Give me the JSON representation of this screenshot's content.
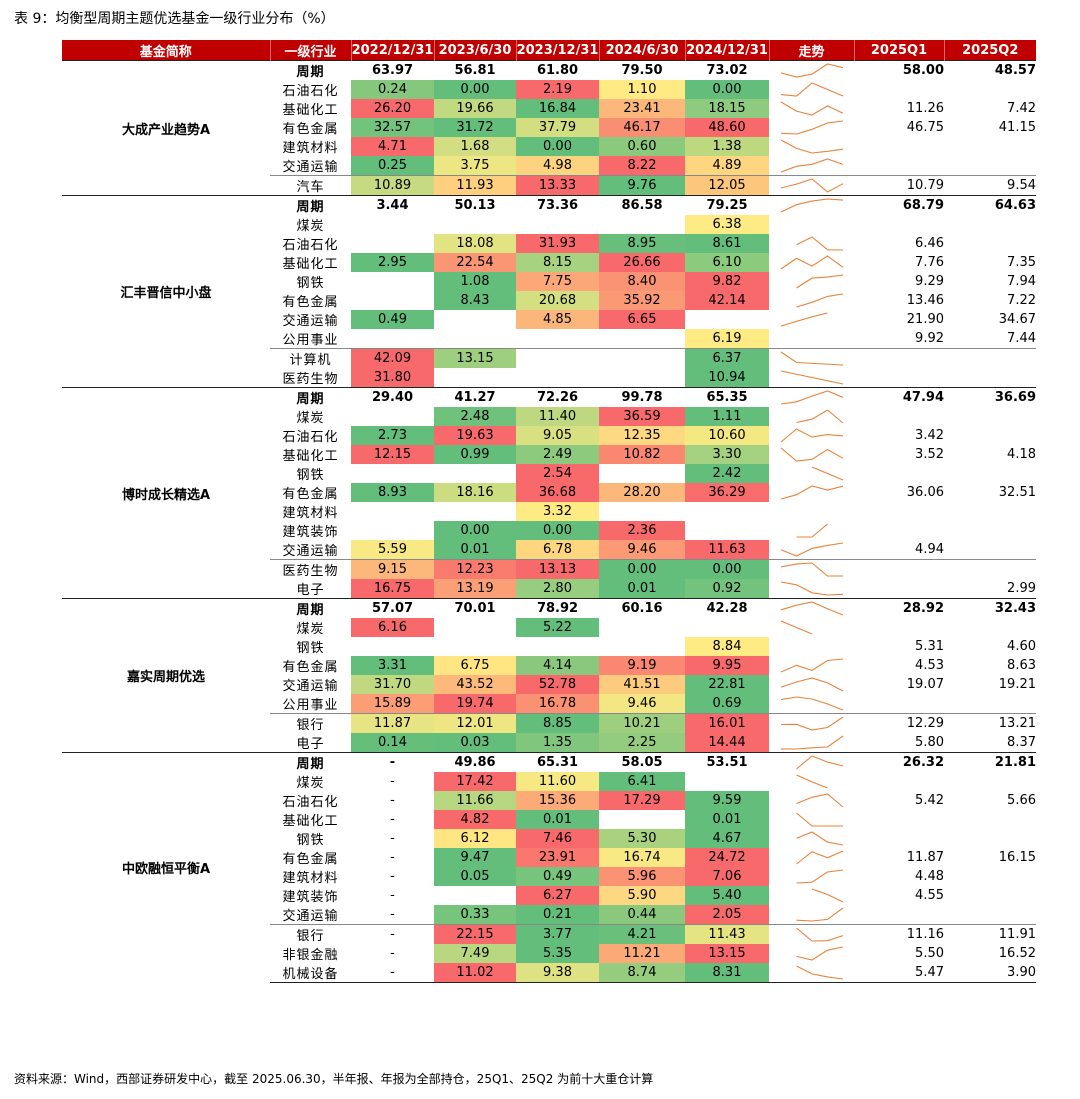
{
  "title": "表 9：均衡型周期主题优选基金一级行业分布（%）",
  "source_note": "资料来源：Wind，西部证券研发中心，截至 2025.06.30，半年报、年报为全部持仓，25Q1、25Q2 为前十大重仓计算",
  "headers": [
    "基金简称",
    "一级行业",
    "2022/12/31",
    "2023/6/30",
    "2023/12/31",
    "2024/6/30",
    "2024/12/31",
    "走势",
    "2025Q1",
    "2025Q2"
  ],
  "colors": {
    "header_bg": "#c00000",
    "heat_low": "#63be7b",
    "heat_mid": "#ffeb84",
    "heat_high": "#f8696b",
    "trend_line": "#e8833a"
  },
  "chart_data": {
    "type": "table",
    "funds": [
      {
        "name": "大成产业趋势A",
        "rows": [
          {
            "industry": "周期",
            "values": [
              "63.97",
              "56.81",
              "61.80",
              "79.50",
              "73.02"
            ],
            "q1": "58.00",
            "q2": "48.57"
          },
          {
            "industry": "石油石化",
            "values": [
              "0.24",
              "0.00",
              "2.19",
              "1.10",
              "0.00"
            ],
            "q1": "",
            "q2": ""
          },
          {
            "industry": "基础化工",
            "values": [
              "26.20",
              "19.66",
              "16.84",
              "23.41",
              "18.15"
            ],
            "q1": "11.26",
            "q2": "7.42"
          },
          {
            "industry": "有色金属",
            "values": [
              "32.57",
              "31.72",
              "37.79",
              "46.17",
              "48.60"
            ],
            "q1": "46.75",
            "q2": "41.15"
          },
          {
            "industry": "建筑材料",
            "values": [
              "4.71",
              "1.68",
              "0.00",
              "0.60",
              "1.38"
            ],
            "q1": "",
            "q2": ""
          },
          {
            "industry": "交通运输",
            "values": [
              "0.25",
              "3.75",
              "4.98",
              "8.22",
              "4.89"
            ],
            "q1": "",
            "q2": ""
          },
          {
            "industry": "汽车",
            "values": [
              "10.89",
              "11.93",
              "13.33",
              "9.76",
              "12.05"
            ],
            "q1": "10.79",
            "q2": "9.54"
          }
        ]
      },
      {
        "name": "汇丰晋信中小盘",
        "rows": [
          {
            "industry": "周期",
            "values": [
              "3.44",
              "50.13",
              "73.36",
              "86.58",
              "79.25"
            ],
            "q1": "68.79",
            "q2": "64.63"
          },
          {
            "industry": "煤炭",
            "values": [
              "",
              "",
              "",
              "",
              "6.38"
            ],
            "q1": "",
            "q2": ""
          },
          {
            "industry": "石油石化",
            "values": [
              "",
              "18.08",
              "31.93",
              "8.95",
              "8.61"
            ],
            "q1": "6.46",
            "q2": ""
          },
          {
            "industry": "基础化工",
            "values": [
              "2.95",
              "22.54",
              "8.15",
              "26.66",
              "6.10"
            ],
            "q1": "7.76",
            "q2": "7.35"
          },
          {
            "industry": "钢铁",
            "values": [
              "",
              "1.08",
              "7.75",
              "8.40",
              "9.82"
            ],
            "q1": "9.29",
            "q2": "7.94"
          },
          {
            "industry": "有色金属",
            "values": [
              "",
              "8.43",
              "20.68",
              "35.92",
              "42.14"
            ],
            "q1": "13.46",
            "q2": "7.22"
          },
          {
            "industry": "交通运输",
            "values": [
              "0.49",
              "",
              "4.85",
              "6.65",
              ""
            ],
            "q1": "21.90",
            "q2": "34.67"
          },
          {
            "industry": "公用事业",
            "values": [
              "",
              "",
              "",
              "",
              "6.19"
            ],
            "q1": "9.92",
            "q2": "7.44"
          },
          {
            "industry": "计算机",
            "values": [
              "42.09",
              "13.15",
              "",
              "",
              "6.37"
            ],
            "q1": "",
            "q2": ""
          },
          {
            "industry": "医药生物",
            "values": [
              "31.80",
              "",
              "",
              "",
              "10.94"
            ],
            "q1": "",
            "q2": ""
          }
        ]
      },
      {
        "name": "博时成长精选A",
        "rows": [
          {
            "industry": "周期",
            "values": [
              "29.40",
              "41.27",
              "72.26",
              "99.78",
              "65.35"
            ],
            "q1": "47.94",
            "q2": "36.69"
          },
          {
            "industry": "煤炭",
            "values": [
              "",
              "2.48",
              "11.40",
              "36.59",
              "1.11"
            ],
            "q1": "",
            "q2": ""
          },
          {
            "industry": "石油石化",
            "values": [
              "2.73",
              "19.63",
              "9.05",
              "12.35",
              "10.60"
            ],
            "q1": "3.42",
            "q2": ""
          },
          {
            "industry": "基础化工",
            "values": [
              "12.15",
              "0.99",
              "2.49",
              "10.82",
              "3.30"
            ],
            "q1": "3.52",
            "q2": "4.18"
          },
          {
            "industry": "钢铁",
            "values": [
              "",
              "",
              "2.54",
              "",
              "2.42"
            ],
            "q1": "",
            "q2": ""
          },
          {
            "industry": "有色金属",
            "values": [
              "8.93",
              "18.16",
              "36.68",
              "28.20",
              "36.29"
            ],
            "q1": "36.06",
            "q2": "32.51"
          },
          {
            "industry": "建筑材料",
            "values": [
              "",
              "",
              "3.32",
              "",
              ""
            ],
            "q1": "",
            "q2": ""
          },
          {
            "industry": "建筑装饰",
            "values": [
              "",
              "0.00",
              "0.00",
              "2.36",
              ""
            ],
            "q1": "",
            "q2": ""
          },
          {
            "industry": "交通运输",
            "values": [
              "5.59",
              "0.01",
              "6.78",
              "9.46",
              "11.63"
            ],
            "q1": "4.94",
            "q2": ""
          },
          {
            "industry": "医药生物",
            "values": [
              "9.15",
              "12.23",
              "13.13",
              "0.00",
              "0.00"
            ],
            "q1": "",
            "q2": ""
          },
          {
            "industry": "电子",
            "values": [
              "16.75",
              "13.19",
              "2.80",
              "0.01",
              "0.92"
            ],
            "q1": "",
            "q2": "2.99"
          }
        ]
      },
      {
        "name": "嘉实周期优选",
        "rows": [
          {
            "industry": "周期",
            "values": [
              "57.07",
              "70.01",
              "78.92",
              "60.16",
              "42.28"
            ],
            "q1": "28.92",
            "q2": "32.43"
          },
          {
            "industry": "煤炭",
            "values": [
              "6.16",
              "",
              "5.22",
              "",
              ""
            ],
            "q1": "",
            "q2": ""
          },
          {
            "industry": "钢铁",
            "values": [
              "",
              "",
              "",
              "",
              "8.84"
            ],
            "q1": "5.31",
            "q2": "4.60"
          },
          {
            "industry": "有色金属",
            "values": [
              "3.31",
              "6.75",
              "4.14",
              "9.19",
              "9.95"
            ],
            "q1": "4.53",
            "q2": "8.63"
          },
          {
            "industry": "交通运输",
            "values": [
              "31.70",
              "43.52",
              "52.78",
              "41.51",
              "22.81"
            ],
            "q1": "19.07",
            "q2": "19.21"
          },
          {
            "industry": "公用事业",
            "values": [
              "15.89",
              "19.74",
              "16.78",
              "9.46",
              "0.69"
            ],
            "q1": "",
            "q2": ""
          },
          {
            "industry": "银行",
            "values": [
              "11.87",
              "12.01",
              "8.85",
              "10.21",
              "16.01"
            ],
            "q1": "12.29",
            "q2": "13.21"
          },
          {
            "industry": "电子",
            "values": [
              "0.14",
              "0.03",
              "1.35",
              "2.25",
              "14.44"
            ],
            "q1": "5.80",
            "q2": "8.37"
          }
        ]
      },
      {
        "name": "中欧融恒平衡A",
        "rows": [
          {
            "industry": "周期",
            "values": [
              "-",
              "49.86",
              "65.31",
              "58.05",
              "53.51"
            ],
            "q1": "26.32",
            "q2": "21.81"
          },
          {
            "industry": "煤炭",
            "values": [
              "-",
              "17.42",
              "11.60",
              "6.41",
              ""
            ],
            "q1": "",
            "q2": ""
          },
          {
            "industry": "石油石化",
            "values": [
              "-",
              "11.66",
              "15.36",
              "17.29",
              "9.59"
            ],
            "q1": "5.42",
            "q2": "5.66"
          },
          {
            "industry": "基础化工",
            "values": [
              "-",
              "4.82",
              "0.01",
              "",
              "0.01"
            ],
            "q1": "",
            "q2": ""
          },
          {
            "industry": "钢铁",
            "values": [
              "-",
              "6.12",
              "7.46",
              "5.30",
              "4.67"
            ],
            "q1": "",
            "q2": ""
          },
          {
            "industry": "有色金属",
            "values": [
              "-",
              "9.47",
              "23.91",
              "16.74",
              "24.72"
            ],
            "q1": "11.87",
            "q2": "16.15"
          },
          {
            "industry": "建筑材料",
            "values": [
              "-",
              "0.05",
              "0.49",
              "5.96",
              "7.06"
            ],
            "q1": "4.48",
            "q2": ""
          },
          {
            "industry": "建筑装饰",
            "values": [
              "-",
              "",
              "6.27",
              "5.90",
              "5.40"
            ],
            "q1": "4.55",
            "q2": ""
          },
          {
            "industry": "交通运输",
            "values": [
              "-",
              "0.33",
              "0.21",
              "0.44",
              "2.05"
            ],
            "q1": "",
            "q2": ""
          },
          {
            "industry": "银行",
            "values": [
              "-",
              "22.15",
              "3.77",
              "4.21",
              "11.43"
            ],
            "q1": "11.16",
            "q2": "11.91"
          },
          {
            "industry": "非银金融",
            "values": [
              "-",
              "7.49",
              "5.35",
              "11.21",
              "13.15"
            ],
            "q1": "5.50",
            "q2": "16.52"
          },
          {
            "industry": "机械设备",
            "values": [
              "-",
              "11.02",
              "9.38",
              "8.74",
              "8.31"
            ],
            "q1": "5.47",
            "q2": "3.90"
          }
        ]
      }
    ]
  }
}
